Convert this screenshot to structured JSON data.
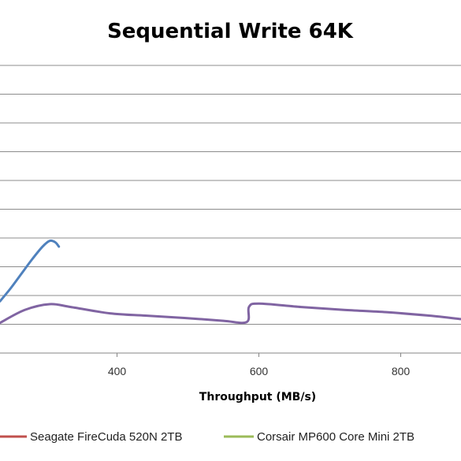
{
  "chart_data": {
    "type": "line",
    "title": "Sequential Write 64K",
    "xlabel": "Throughput  (MB/s)",
    "ylabel": "",
    "x_ticks": [
      400,
      600,
      800
    ],
    "xlim": [
      235,
      885
    ],
    "ylim": [
      0,
      10
    ],
    "grid": true,
    "legend_position": "bottom",
    "series": [
      {
        "name": "",
        "color": "#4F81BD",
        "points": [
          [
            235,
            1.8
          ],
          [
            250,
            2.25
          ],
          [
            265,
            2.75
          ],
          [
            280,
            3.25
          ],
          [
            295,
            3.7
          ],
          [
            305,
            3.9
          ],
          [
            313,
            3.85
          ],
          [
            318,
            3.7
          ]
        ]
      },
      {
        "name": "Seagate FireCuda 520N 2TB",
        "color": "#C0504D",
        "points": []
      },
      {
        "name": "Corsair MP600 Core Mini 2TB",
        "color": "#9BBB59",
        "points": []
      },
      {
        "name": "",
        "color": "#8064A2",
        "points": [
          [
            235,
            1.05
          ],
          [
            270,
            1.5
          ],
          [
            305,
            1.7
          ],
          [
            335,
            1.6
          ],
          [
            390,
            1.38
          ],
          [
            440,
            1.3
          ],
          [
            495,
            1.22
          ],
          [
            550,
            1.12
          ],
          [
            583,
            1.08
          ],
          [
            586,
            1.6
          ],
          [
            600,
            1.72
          ],
          [
            660,
            1.6
          ],
          [
            720,
            1.5
          ],
          [
            780,
            1.42
          ],
          [
            840,
            1.3
          ],
          [
            885,
            1.18
          ]
        ]
      }
    ]
  }
}
